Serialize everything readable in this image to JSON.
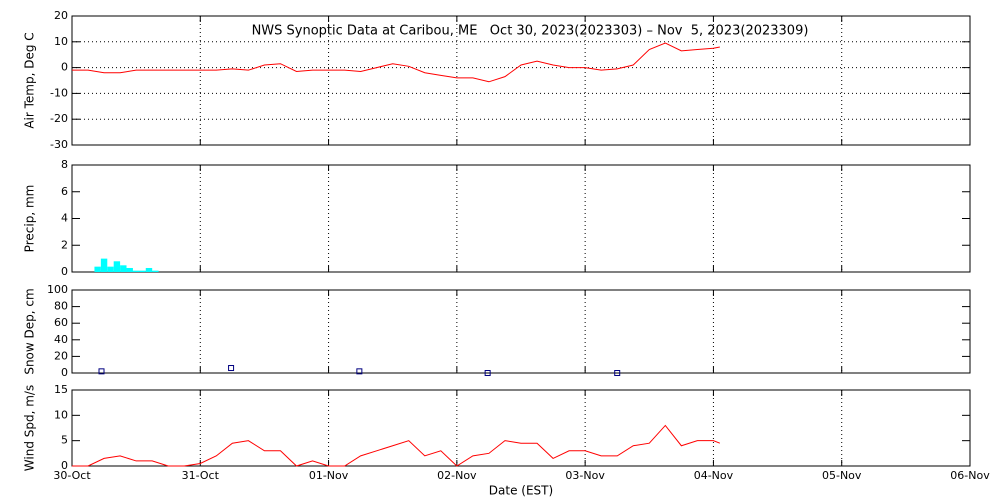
{
  "chart_data": [
    {
      "type": "line",
      "title": "NWS Synoptic Data at Caribou, ME   Oct 30, 2023(2023303) – Nov  5, 2023(2023309)",
      "y_label": "Air Temp, Deg C",
      "color": "#ff0000",
      "grid": "both",
      "x": [
        0,
        0.125,
        0.25,
        0.375,
        0.5,
        0.625,
        0.75,
        0.875,
        1,
        1.125,
        1.25,
        1.375,
        1.5,
        1.625,
        1.75,
        1.875,
        2,
        2.125,
        2.25,
        2.375,
        2.5,
        2.625,
        2.75,
        2.875,
        3,
        3.125,
        3.25,
        3.375,
        3.5,
        3.625,
        3.75,
        3.875,
        4,
        4.125,
        4.25,
        4.375,
        4.5,
        4.625,
        4.75,
        4.875,
        5,
        5.05
      ],
      "values": [
        -1,
        -1,
        -2,
        -2,
        -1,
        -1,
        -1,
        -1,
        -1,
        -1,
        -0.5,
        -1,
        1,
        1.5,
        -1.5,
        -1,
        -1,
        -1,
        -1.5,
        0,
        1.5,
        0.5,
        -2,
        -3,
        -4,
        -4,
        -5.5,
        -3.5,
        1,
        2.5,
        1,
        0,
        0,
        -1,
        -0.5,
        1,
        7,
        9.5,
        6.5,
        7,
        7.5,
        8
      ],
      "xlim": [
        0,
        7
      ],
      "xticks": [
        0,
        1,
        2,
        3,
        4,
        5,
        6,
        7
      ],
      "ylim": [
        -30,
        20
      ],
      "yticks": [
        -30,
        -20,
        -10,
        0,
        10,
        20
      ]
    },
    {
      "type": "bar",
      "y_label": "Precip, mm",
      "color": "#00ffff",
      "grid": "x",
      "x": [
        0.2,
        0.25,
        0.3,
        0.35,
        0.4,
        0.45,
        0.5,
        0.55,
        0.6,
        0.65
      ],
      "values": [
        0.4,
        1.0,
        0.4,
        0.8,
        0.5,
        0.3,
        0.1,
        0.1,
        0.3,
        0.1
      ],
      "xlim": [
        0,
        7
      ],
      "xticks": [
        0,
        1,
        2,
        3,
        4,
        5,
        6,
        7
      ],
      "ylim": [
        0,
        8
      ],
      "yticks": [
        0,
        2,
        4,
        6,
        8
      ]
    },
    {
      "type": "scatter",
      "y_label": "Snow Dep, cm",
      "color": "#000080",
      "grid": "x",
      "x": [
        0.23,
        1.24,
        2.24,
        3.24,
        4.25
      ],
      "values": [
        2,
        6,
        2,
        0,
        0
      ],
      "xlim": [
        0,
        7
      ],
      "xticks": [
        0,
        1,
        2,
        3,
        4,
        5,
        6,
        7
      ],
      "ylim": [
        0,
        100
      ],
      "yticks": [
        0,
        20,
        40,
        60,
        80,
        100
      ]
    },
    {
      "type": "line",
      "y_label": "Wind Spd, m/s",
      "x_label": "Date (EST)",
      "color": "#ff0000",
      "grid": "x",
      "x": [
        0,
        0.125,
        0.25,
        0.375,
        0.5,
        0.625,
        0.75,
        0.875,
        1,
        1.125,
        1.25,
        1.375,
        1.5,
        1.625,
        1.75,
        1.875,
        2,
        2.125,
        2.25,
        2.375,
        2.5,
        2.625,
        2.75,
        2.875,
        3,
        3.125,
        3.25,
        3.375,
        3.5,
        3.625,
        3.75,
        3.875,
        4,
        4.125,
        4.25,
        4.375,
        4.5,
        4.625,
        4.75,
        4.875,
        5,
        5.05
      ],
      "values": [
        0,
        0,
        1.5,
        2,
        1,
        1,
        0,
        0,
        0.5,
        2,
        4.5,
        5,
        3,
        3,
        0,
        1,
        0,
        0,
        2,
        3,
        4,
        5,
        2,
        3,
        0,
        2,
        2.5,
        5,
        4.5,
        4.5,
        1.5,
        3,
        3,
        2,
        2,
        4,
        4.5,
        8,
        4,
        5,
        5,
        4.5
      ],
      "xlim": [
        0,
        7
      ],
      "xticks": [
        {
          "value": 0,
          "label": "30-Oct"
        },
        {
          "value": 1,
          "label": "31-Oct"
        },
        {
          "value": 2,
          "label": "01-Nov"
        },
        {
          "value": 3,
          "label": "02-Nov"
        },
        {
          "value": 4,
          "label": "03-Nov"
        },
        {
          "value": 5,
          "label": "04-Nov"
        },
        {
          "value": 6,
          "label": "05-Nov"
        },
        {
          "value": 7,
          "label": "06-Nov"
        }
      ],
      "ylim": [
        0,
        15
      ],
      "yticks": [
        0,
        5,
        10,
        15
      ]
    }
  ]
}
